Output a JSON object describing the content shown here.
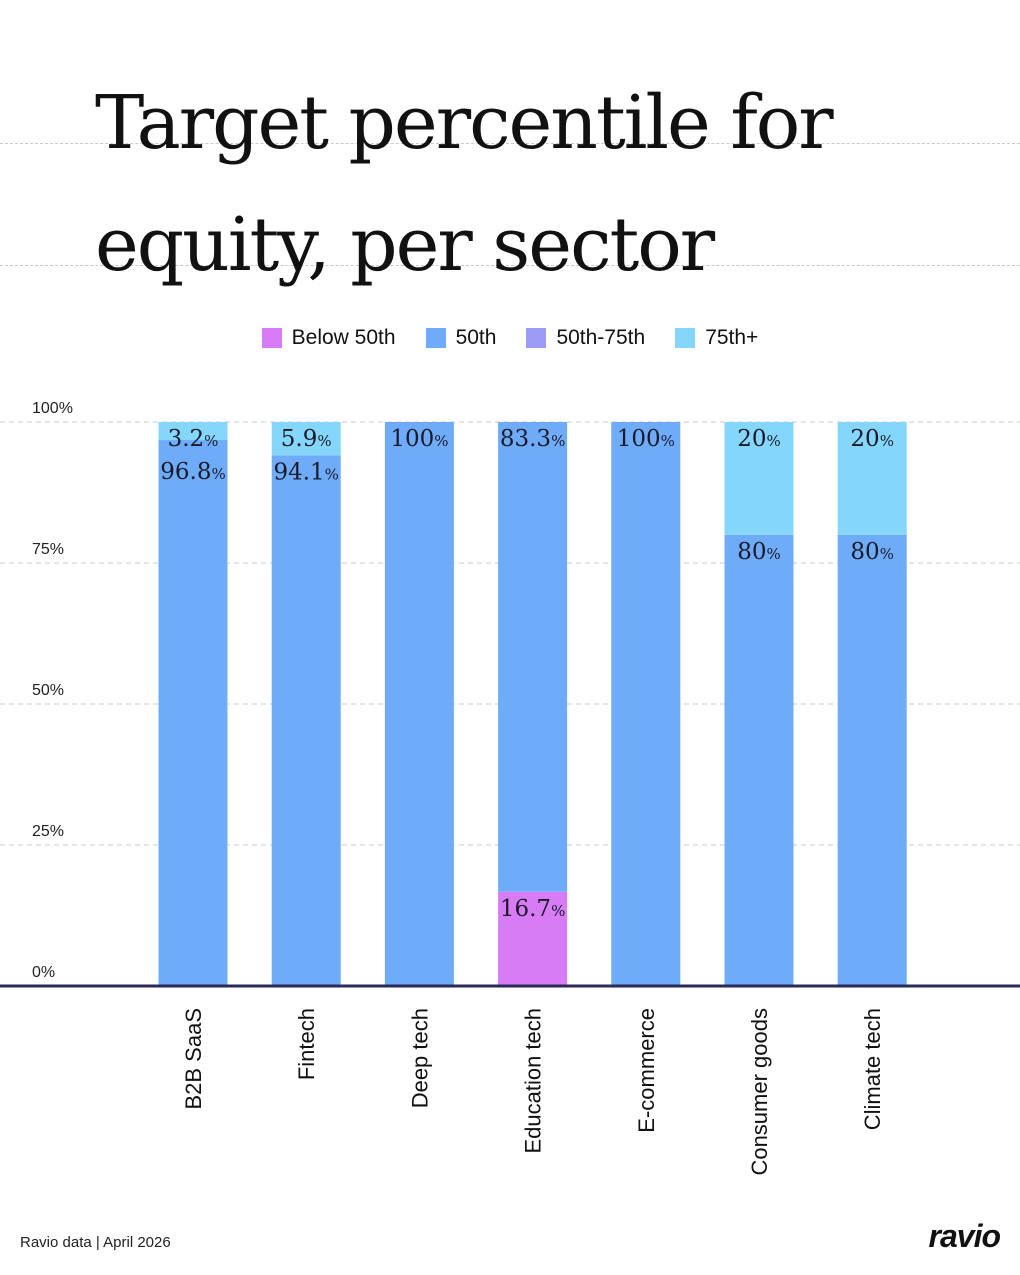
{
  "chart_data": {
    "type": "bar",
    "stacked": true,
    "title": "Target percentile for equity, per sector",
    "categories": [
      "B2B SaaS",
      "Fintech",
      "Deep tech",
      "Education tech",
      "E-commerce",
      "Consumer goods",
      "Climate tech"
    ],
    "series": [
      {
        "name": "Below 50th",
        "color": "#d77cf4",
        "values": [
          0,
          0,
          0,
          16.7,
          0,
          0,
          0
        ]
      },
      {
        "name": "50th",
        "color": "#6eacfa",
        "values": [
          96.8,
          94.1,
          100,
          83.3,
          100,
          80,
          80
        ]
      },
      {
        "name": "50th-75th",
        "color": "#9b9cf6",
        "values": [
          0,
          0,
          0,
          0,
          0,
          0,
          0
        ]
      },
      {
        "name": "75th+",
        "color": "#84d6fb",
        "values": [
          3.2,
          5.9,
          0,
          0,
          0,
          20,
          20
        ]
      }
    ],
    "yticks": [
      "0%",
      "25%",
      "50%",
      "75%",
      "100%"
    ],
    "ylim": [
      0,
      100
    ],
    "grid": true,
    "legend": "top"
  },
  "footer": {
    "source": "Ravio data",
    "date": "April 2026",
    "separator": "|"
  },
  "logo": "ravio"
}
